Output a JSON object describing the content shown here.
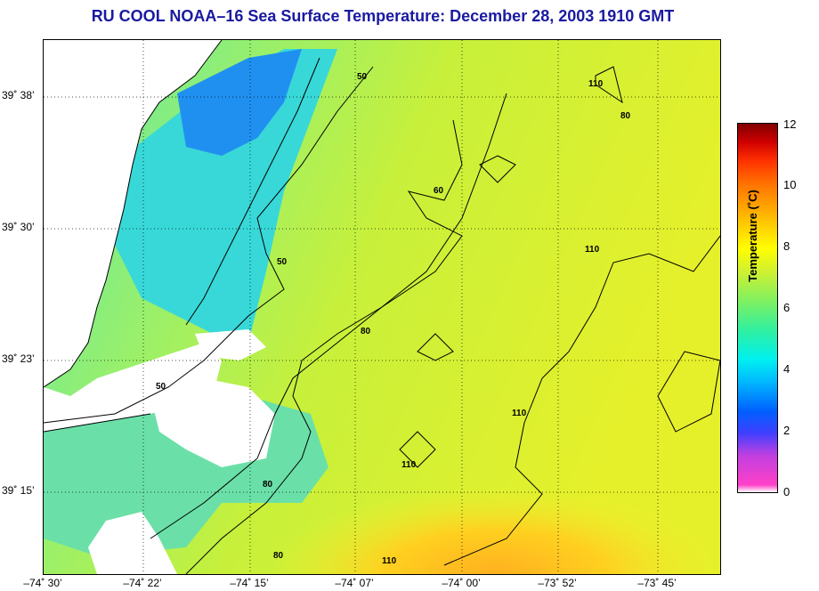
{
  "title": "RU COOL  NOAA–16  Sea Surface Temperature:  December 28, 2003 1910 GMT",
  "map": {
    "lat_labels": [
      "39˚ 38’",
      "39˚ 30’",
      "39˚ 23’",
      "39˚ 15’"
    ],
    "lon_labels": [
      "–74˚ 30’",
      "–74˚ 22’",
      "–74˚ 15’",
      "–74˚ 07’",
      "–74˚ 00’",
      "–73˚ 52’",
      "–73˚ 45’"
    ],
    "contour_labels": [
      "50",
      "50",
      "50",
      "60",
      "80",
      "80",
      "80",
      "80",
      "110",
      "110",
      "110",
      "110",
      "110"
    ]
  },
  "colorbar": {
    "ticks": [
      "12",
      "10",
      "8",
      "6",
      "4",
      "2",
      "0"
    ],
    "label": "Temperature (˚C)",
    "colors": [
      "#ff40c8",
      "#4040ff",
      "#00f0f0",
      "#80f060",
      "#ffff00",
      "#ffa000",
      "#ff3000",
      "#800000"
    ]
  }
}
